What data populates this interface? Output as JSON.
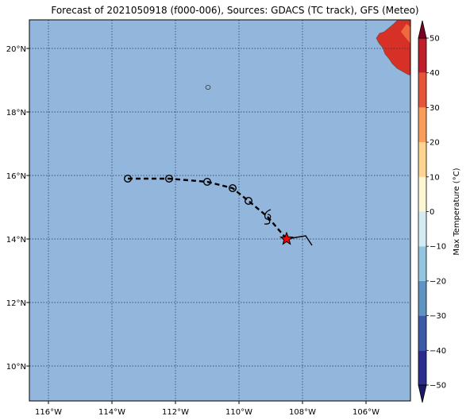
{
  "title": "Forecast of 2021050918 (f000-006), Sources: GDACS (TC track), GFS (Meteo)",
  "map": {
    "lon_range": [
      -116.6,
      -104.6
    ],
    "lat_range": [
      8.9,
      20.9
    ],
    "lon_ticks": [
      -116,
      -114,
      -112,
      -110,
      -108,
      -106
    ],
    "lon_tick_labels": [
      "116°W",
      "114°W",
      "112°W",
      "110°W",
      "108°W",
      "106°W"
    ],
    "lat_ticks": [
      10,
      12,
      14,
      16,
      18,
      20
    ],
    "lat_tick_labels": [
      "10°N",
      "12°N",
      "14°N",
      "16°N",
      "18°N",
      "20°N"
    ],
    "ocean_color": "#93b7dc",
    "grid": "dotted"
  },
  "track": {
    "points": [
      {
        "lon": -113.5,
        "lat": 15.9,
        "marker": "circle"
      },
      {
        "lon": -112.2,
        "lat": 15.9,
        "marker": "circle"
      },
      {
        "lon": -111.0,
        "lat": 15.8,
        "marker": "circle"
      },
      {
        "lon": -110.2,
        "lat": 15.6,
        "marker": "circle"
      },
      {
        "lon": -109.7,
        "lat": 15.2,
        "marker": "circle"
      },
      {
        "lon": -109.1,
        "lat": 14.7,
        "marker": "cyclone-icon"
      },
      {
        "lon": -108.5,
        "lat": 14.0,
        "marker": "star"
      }
    ],
    "history": [
      {
        "lon": -108.5,
        "lat": 14.0
      },
      {
        "lon": -108.2,
        "lat": 14.05
      },
      {
        "lon": -107.9,
        "lat": 14.1
      },
      {
        "lon": -107.7,
        "lat": 13.8
      }
    ],
    "star_color": "#ff0000"
  },
  "colorbar": {
    "label": "Max Temperature (°C)",
    "ticks": [
      -50,
      -40,
      -30,
      -20,
      -10,
      0,
      10,
      20,
      30,
      40,
      50
    ],
    "tick_labels": [
      "−50",
      "−40",
      "−30",
      "−20",
      "−10",
      "0",
      "10",
      "20",
      "30",
      "40",
      "50"
    ],
    "colors": [
      "#2d2d8f",
      "#3c5aa6",
      "#5f94c2",
      "#94c5df",
      "#d4ebf2",
      "#fdf6d2",
      "#fdd591",
      "#f99d5a",
      "#e5553a",
      "#bf1e2c"
    ],
    "under_color": "#1a1a66",
    "over_color": "#7f0023"
  },
  "land_color": "#d73027",
  "land_inner_color": "#ef6b3f"
}
